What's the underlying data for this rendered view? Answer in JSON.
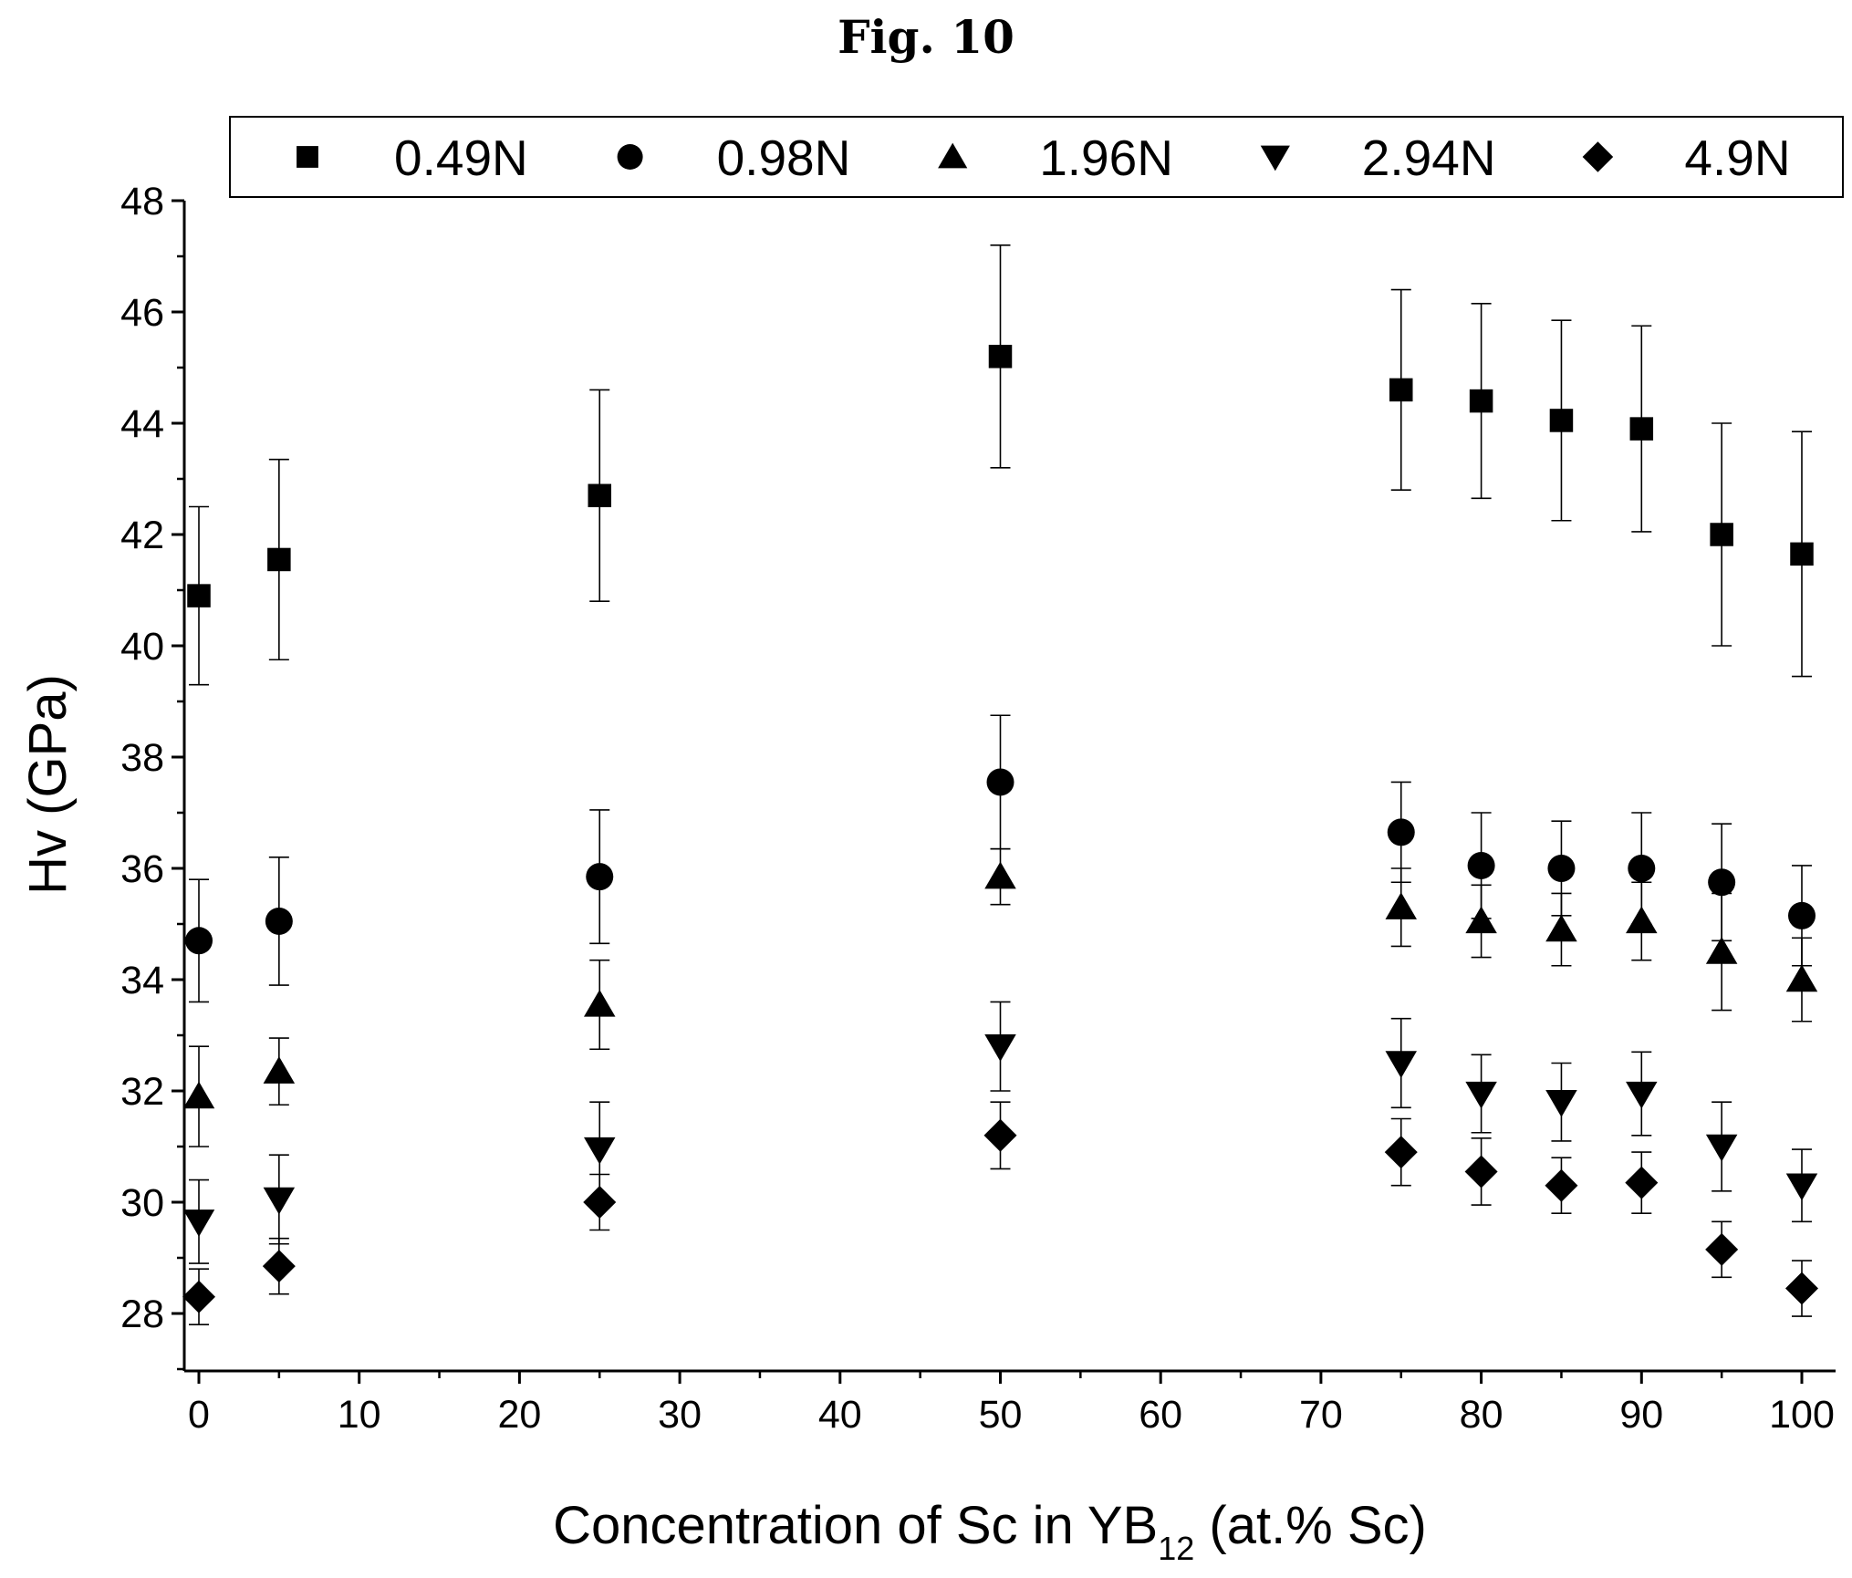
{
  "figure_title": "Fig. 10",
  "chart_data": {
    "type": "scatter",
    "title": "Fig. 10",
    "xlabel": {
      "main": "Concentration of Sc in YB",
      "sub": "12",
      "tail": " (at.% Sc)"
    },
    "ylabel": "Hv (GPa)",
    "xlim": [
      -1,
      102
    ],
    "ylim": [
      27,
      48
    ],
    "xticks": [
      0,
      10,
      20,
      30,
      40,
      50,
      60,
      70,
      80,
      90,
      100
    ],
    "yticks": [
      28,
      30,
      32,
      34,
      36,
      38,
      40,
      42,
      44,
      46,
      48
    ],
    "grid": false,
    "error_bars": true,
    "legend_position": "top, horizontal, framed",
    "x": [
      0,
      5,
      25,
      50,
      75,
      80,
      85,
      90,
      95,
      100
    ],
    "series": [
      {
        "name": "0.49N",
        "marker": "square",
        "values": [
          40.9,
          41.55,
          42.7,
          45.2,
          44.6,
          44.4,
          44.05,
          43.9,
          42.0,
          41.65
        ],
        "errors": [
          1.6,
          1.8,
          1.9,
          2.0,
          1.8,
          1.75,
          1.8,
          1.85,
          2.0,
          2.2
        ]
      },
      {
        "name": "0.98N",
        "marker": "circle",
        "values": [
          34.7,
          35.05,
          35.85,
          37.55,
          36.65,
          36.05,
          36.0,
          36.0,
          35.75,
          35.15
        ],
        "errors": [
          1.1,
          1.15,
          1.2,
          1.2,
          0.9,
          0.95,
          0.85,
          1.0,
          1.05,
          0.9
        ]
      },
      {
        "name": "1.96N",
        "marker": "triangle-up",
        "values": [
          31.9,
          32.35,
          33.55,
          35.85,
          35.3,
          35.05,
          34.9,
          35.05,
          34.5,
          34.0
        ],
        "errors": [
          0.9,
          0.6,
          0.8,
          0.5,
          0.7,
          0.65,
          0.65,
          0.7,
          1.05,
          0.75
        ]
      },
      {
        "name": "2.94N",
        "marker": "triangle-down",
        "values": [
          29.65,
          30.05,
          30.95,
          32.8,
          32.5,
          31.95,
          31.8,
          31.95,
          31.0,
          30.3
        ],
        "errors": [
          0.75,
          0.8,
          0.85,
          0.8,
          0.8,
          0.7,
          0.7,
          0.75,
          0.8,
          0.65
        ]
      },
      {
        "name": "4.9N",
        "marker": "diamond",
        "values": [
          28.3,
          28.85,
          30.0,
          31.2,
          30.9,
          30.55,
          30.3,
          30.35,
          29.15,
          28.45
        ],
        "errors": [
          0.5,
          0.5,
          0.5,
          0.6,
          0.6,
          0.6,
          0.5,
          0.55,
          0.5,
          0.5
        ]
      }
    ]
  }
}
